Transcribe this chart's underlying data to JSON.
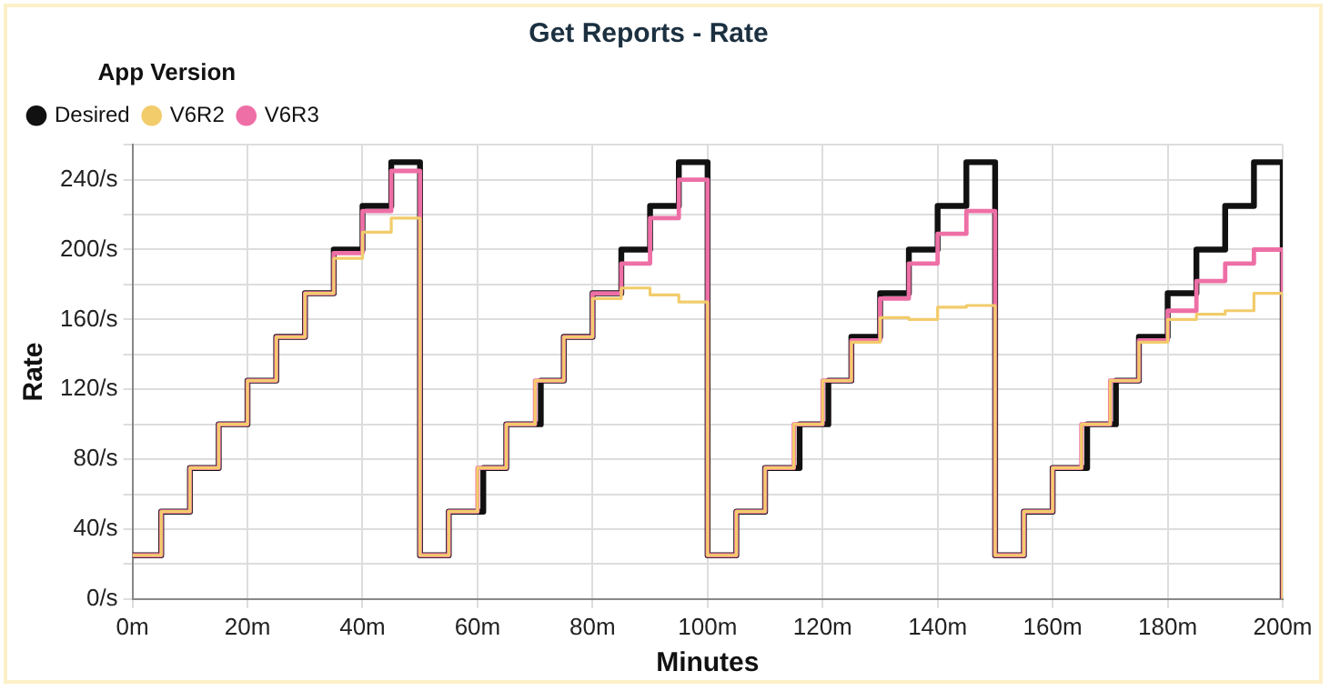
{
  "chart_data": {
    "type": "step",
    "title": "Get Reports - Rate",
    "xlabel": "Minutes",
    "ylabel": "Rate",
    "legend_title": "App Version",
    "legend": "top left",
    "grid": true,
    "marker": "none",
    "line_style": "solid",
    "xlim": [
      0,
      200
    ],
    "ylim": [
      0,
      260
    ],
    "xticks": [
      {
        "value": 0,
        "label": "0m"
      },
      {
        "value": 20,
        "label": "20m"
      },
      {
        "value": 40,
        "label": "40m"
      },
      {
        "value": 60,
        "label": "60m"
      },
      {
        "value": 80,
        "label": "80m"
      },
      {
        "value": 100,
        "label": "100m"
      },
      {
        "value": 120,
        "label": "120m"
      },
      {
        "value": 140,
        "label": "140m"
      },
      {
        "value": 160,
        "label": "160m"
      },
      {
        "value": 180,
        "label": "180m"
      },
      {
        "value": 200,
        "label": "200m"
      }
    ],
    "yticks": [
      {
        "value": 0,
        "label": "0/s"
      },
      {
        "value": 20,
        "label": null
      },
      {
        "value": 40,
        "label": "40/s"
      },
      {
        "value": 60,
        "label": null
      },
      {
        "value": 80,
        "label": "80/s"
      },
      {
        "value": 100,
        "label": null
      },
      {
        "value": 120,
        "label": "120/s"
      },
      {
        "value": 140,
        "label": null
      },
      {
        "value": 160,
        "label": "160/s"
      },
      {
        "value": 180,
        "label": null
      },
      {
        "value": 200,
        "label": "200/s"
      },
      {
        "value": 220,
        "label": null
      },
      {
        "value": 240,
        "label": "240/s"
      },
      {
        "value": 260,
        "label": null
      }
    ],
    "series": [
      {
        "name": "Desired",
        "color": "#111111",
        "x": [
          0,
          5,
          10,
          15,
          20,
          25,
          30,
          35,
          40,
          45,
          50,
          55,
          61,
          65,
          71,
          75,
          80,
          85,
          90,
          95,
          100,
          105,
          110,
          116,
          121,
          125,
          130,
          135,
          140,
          145,
          150,
          155,
          160,
          166,
          171,
          175,
          180,
          185,
          190,
          195,
          200
        ],
        "values": [
          25,
          50,
          75,
          100,
          125,
          150,
          175,
          200,
          225,
          250,
          25,
          50,
          75,
          100,
          125,
          150,
          175,
          200,
          225,
          250,
          25,
          50,
          75,
          100,
          125,
          150,
          175,
          200,
          225,
          250,
          25,
          50,
          75,
          100,
          125,
          150,
          175,
          200,
          225,
          250,
          0
        ]
      },
      {
        "name": "V6R2",
        "color": "#f2cc6b",
        "x": [
          0,
          5,
          10,
          15,
          20,
          25,
          30,
          35,
          40,
          45,
          50,
          55,
          60,
          65,
          70,
          75,
          80,
          85,
          90,
          95,
          100,
          105,
          110,
          115,
          120,
          125,
          130,
          135,
          140,
          145,
          150,
          155,
          160,
          165,
          170,
          175,
          180,
          185,
          190,
          195,
          200
        ],
        "values": [
          25,
          50,
          75,
          100,
          125,
          150,
          175,
          195,
          210,
          218,
          25,
          50,
          75,
          100,
          125,
          150,
          172,
          178,
          174,
          170,
          25,
          50,
          75,
          100,
          125,
          147,
          161,
          160,
          167,
          168,
          25,
          50,
          75,
          100,
          125,
          147,
          160,
          163,
          165,
          175,
          0
        ]
      },
      {
        "name": "V6R3",
        "color": "#ee6fa6",
        "x": [
          0,
          5,
          10,
          15,
          20,
          25,
          30,
          35,
          40,
          45,
          50,
          55,
          60,
          65,
          70,
          75,
          80,
          85,
          90,
          95,
          100,
          105,
          110,
          115,
          120,
          125,
          130,
          135,
          140,
          145,
          150,
          155,
          160,
          165,
          170,
          175,
          180,
          185,
          190,
          195,
          200
        ],
        "values": [
          25,
          50,
          75,
          100,
          125,
          150,
          175,
          198,
          222,
          245,
          25,
          50,
          75,
          100,
          125,
          150,
          175,
          192,
          218,
          240,
          25,
          50,
          75,
          100,
          125,
          148,
          172,
          192,
          209,
          222,
          25,
          50,
          75,
          100,
          125,
          148,
          165,
          182,
          192,
          200,
          0
        ]
      }
    ]
  }
}
